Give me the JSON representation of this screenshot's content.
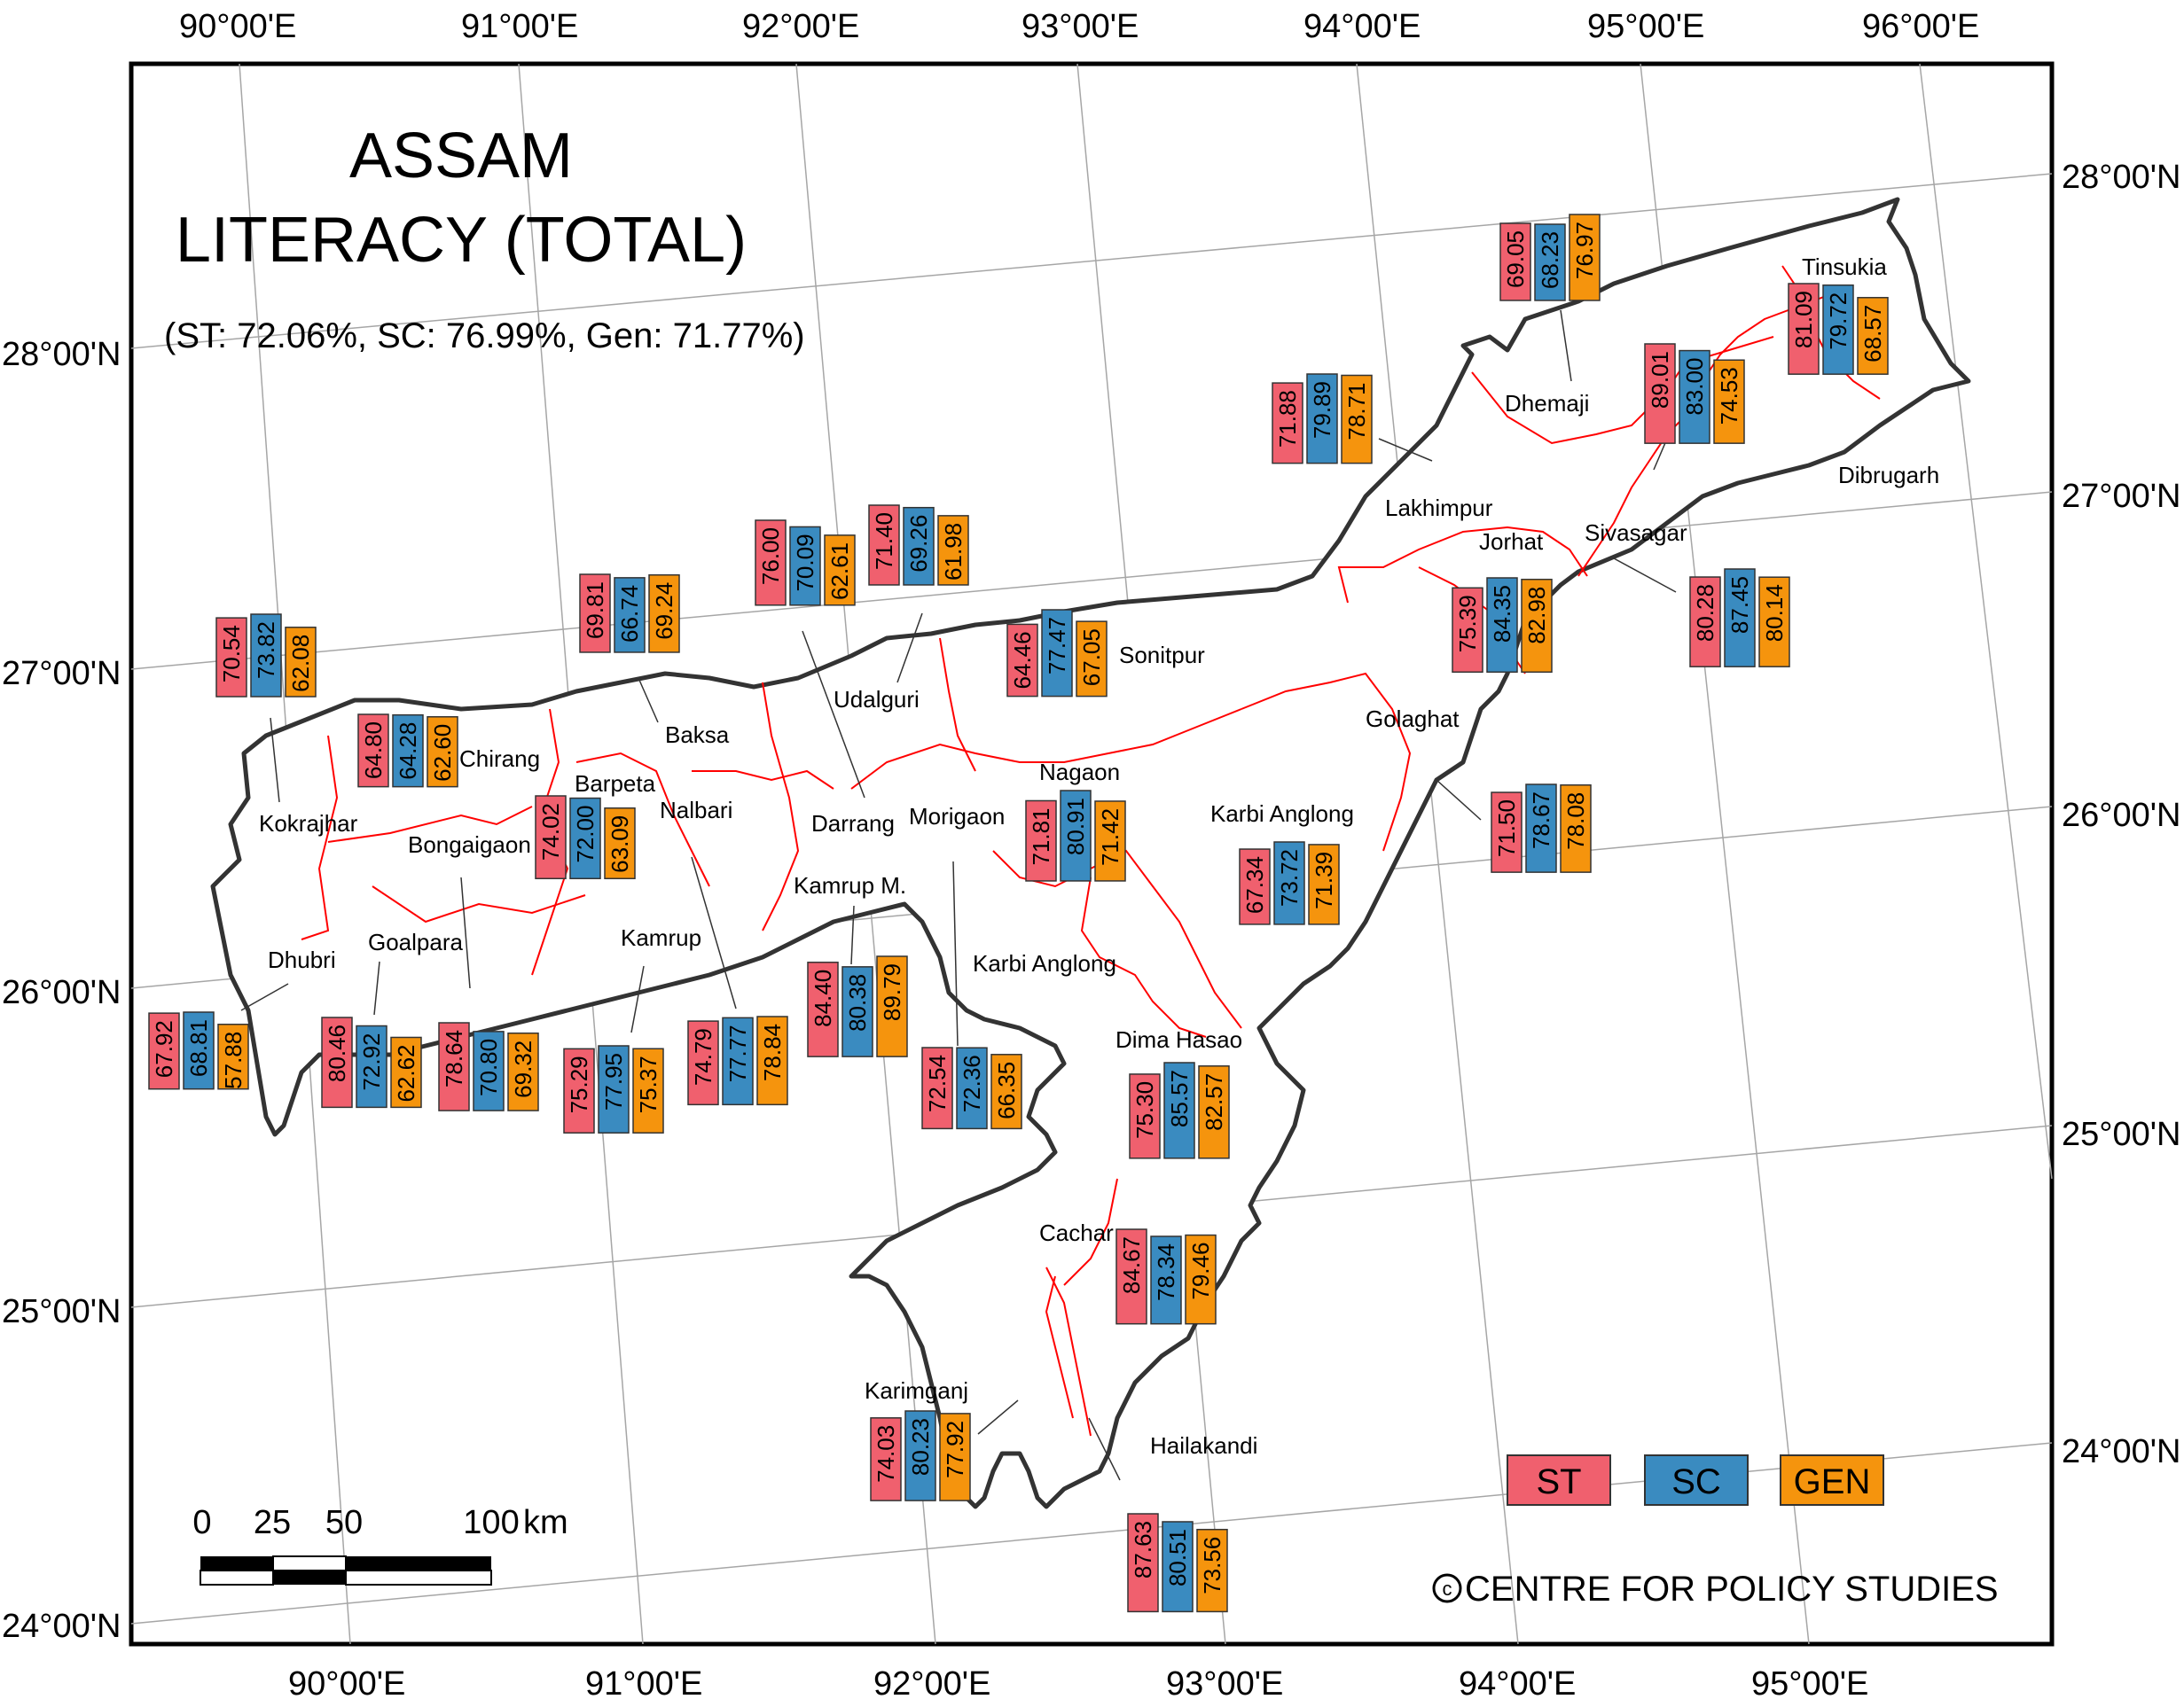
{
  "title": {
    "line1": "ASSAM",
    "line2": "LITERACY (TOTAL)",
    "subtitle": "(ST: 72.06%, SC: 76.99%, Gen: 71.77%)"
  },
  "colors": {
    "st": "#f0606e",
    "sc": "#3a8bc0",
    "gen": "#f5940d",
    "district_border": "#ff0000",
    "state_border": "#333333",
    "graticule": "#a0a0a0"
  },
  "coordinates": {
    "top_longitudes": [
      "90°00'E",
      "91°00'E",
      "92°00'E",
      "93°00'E",
      "94°00'E",
      "95°00'E",
      "96°00'E"
    ],
    "bottom_longitudes": [
      "90°00'E",
      "91°00'E",
      "92°00'E",
      "93°00'E",
      "94°00'E",
      "95°00'E"
    ],
    "left_latitudes": [
      "28°00'N",
      "27°00'N",
      "26°00'N",
      "25°00'N",
      "24°00'N"
    ],
    "right_latitudes": [
      "28°00'N",
      "27°00'N",
      "26°00'N",
      "25°00'N",
      "24°00'N"
    ]
  },
  "legend": {
    "st": "ST",
    "sc": "SC",
    "gen": "GEN"
  },
  "scale_bar": {
    "labels": [
      "0",
      "25",
      "50",
      "100"
    ],
    "unit": "km"
  },
  "credit": "CENTRE FOR POLICY STUDIES",
  "copyright_symbol": "c",
  "districts": [
    {
      "name": "Kokrajhar",
      "values": [
        "70.54",
        "73.82",
        "62.08"
      ]
    },
    {
      "name": "Chirang",
      "values": [
        "64.80",
        "64.28",
        "62.60"
      ]
    },
    {
      "name": "Baksa",
      "values": [
        "69.81",
        "66.74",
        "69.24"
      ]
    },
    {
      "name": "Udalguri",
      "values": [
        "71.40",
        "69.26",
        "61.98"
      ]
    },
    {
      "name": "Darrang",
      "values": [
        "76.00",
        "70.09",
        "62.61"
      ]
    },
    {
      "name": "Sonitpur",
      "values": [
        "64.46",
        "77.47",
        "67.05"
      ]
    },
    {
      "name": "Lakhimpur",
      "values": [
        "71.88",
        "79.89",
        "78.71"
      ]
    },
    {
      "name": "Dhemaji",
      "values": [
        "69.05",
        "68.23",
        "76.97"
      ]
    },
    {
      "name": "Tinsukia",
      "values": [
        "81.09",
        "79.72",
        "68.57"
      ]
    },
    {
      "name": "Dibrugarh",
      "values": [
        "89.01",
        "83.00",
        "74.53"
      ]
    },
    {
      "name": "Sivasagar",
      "values": [
        "80.28",
        "87.45",
        "80.14"
      ]
    },
    {
      "name": "Jorhat",
      "values": [
        "75.39",
        "84.35",
        "82.98"
      ]
    },
    {
      "name": "Golaghat",
      "values": [
        "71.50",
        "78.67",
        "78.08"
      ]
    },
    {
      "name": "Barpeta",
      "values": [
        "74.02",
        "72.00",
        "63.09"
      ]
    },
    {
      "name": "Nagaon",
      "values": [
        "71.81",
        "80.91",
        "71.42"
      ]
    },
    {
      "name": "Karbi Anglong",
      "values": [
        "67.34",
        "73.72",
        "71.39"
      ]
    },
    {
      "name": "Dhubri",
      "values": [
        "67.92",
        "68.81",
        "57.88"
      ]
    },
    {
      "name": "Goalpara",
      "values": [
        "80.46",
        "72.92",
        "62.62"
      ]
    },
    {
      "name": "Bongaigaon",
      "values": [
        "78.64",
        "70.80",
        "69.32"
      ]
    },
    {
      "name": "Kamrup",
      "values": [
        "75.29",
        "77.95",
        "75.37"
      ]
    },
    {
      "name": "Nalbari",
      "values": [
        "74.79",
        "77.77",
        "78.84"
      ]
    },
    {
      "name": "Kamrup M.",
      "values": [
        "84.40",
        "80.38",
        "89.79"
      ]
    },
    {
      "name": "Morigaon",
      "values": [
        "72.54",
        "72.36",
        "66.35"
      ]
    },
    {
      "name": "Dima Hasao",
      "values": [
        "75.30",
        "85.57",
        "82.57"
      ]
    },
    {
      "name": "Cachar",
      "values": [
        "84.67",
        "78.34",
        "79.46"
      ]
    },
    {
      "name": "Karimganj",
      "values": [
        "74.03",
        "80.23",
        "77.92"
      ]
    },
    {
      "name": "Hailakandi",
      "values": [
        "87.63",
        "80.51",
        "73.56"
      ]
    }
  ],
  "extra_labels": [
    "Karbi Anglong"
  ]
}
